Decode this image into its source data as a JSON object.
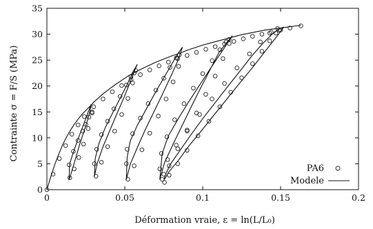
{
  "chart_data": {
    "type": "line",
    "xlabel": "Déformation vraie, ε = ln(L/L₀)",
    "ylabel": "Contrainte σ = F/S (MPa)",
    "xlim": [
      0,
      0.2
    ],
    "ylim": [
      0,
      35
    ],
    "x_ticks": [
      0,
      0.05,
      0.1,
      0.15,
      0.2
    ],
    "x_tick_labels": [
      "0",
      "0.05",
      "0.1",
      "0.15",
      "0.2"
    ],
    "y_ticks": [
      0,
      5,
      10,
      15,
      20,
      25,
      30,
      35
    ],
    "y_tick_labels": [
      "0",
      "5",
      "10",
      "15",
      "20",
      "25",
      "30",
      "35"
    ],
    "grid": false,
    "legend_position": "bottom-right",
    "series": [
      {
        "name": "PA6",
        "style": "markers",
        "marker": "open-circle",
        "x": [
          0.0,
          0.004,
          0.008,
          0.012,
          0.016,
          0.02,
          0.024,
          0.03,
          0.036,
          0.042,
          0.048,
          0.054,
          0.06,
          0.066,
          0.072,
          0.078,
          0.084,
          0.09,
          0.096,
          0.102,
          0.108,
          0.114,
          0.12,
          0.126,
          0.132,
          0.138,
          0.144,
          0.15,
          0.156,
          0.163,
          0.029,
          0.027,
          0.025,
          0.023,
          0.02,
          0.017,
          0.0143,
          0.0147,
          0.0175,
          0.0205,
          0.0235,
          0.0265,
          0.029,
          0.056,
          0.054,
          0.051,
          0.047,
          0.043,
          0.039,
          0.035,
          0.032,
          0.0305,
          0.0315,
          0.035,
          0.039,
          0.0435,
          0.048,
          0.052,
          0.055,
          0.057,
          0.085,
          0.083,
          0.079,
          0.075,
          0.07,
          0.065,
          0.06,
          0.055,
          0.0515,
          0.051,
          0.052,
          0.056,
          0.061,
          0.066,
          0.0715,
          0.0765,
          0.081,
          0.0845,
          0.117,
          0.115,
          0.111,
          0.106,
          0.1,
          0.094,
          0.088,
          0.082,
          0.077,
          0.0735,
          0.0725,
          0.074,
          0.0785,
          0.084,
          0.09,
          0.096,
          0.102,
          0.108,
          0.113,
          0.117,
          0.149,
          0.147,
          0.143,
          0.138,
          0.132,
          0.125,
          0.118,
          0.111,
          0.104,
          0.097,
          0.09,
          0.084,
          0.0785,
          0.0755,
          0.075,
          0.0775,
          0.083,
          0.09,
          0.098,
          0.106,
          0.114,
          0.122,
          0.13,
          0.137,
          0.143,
          0.148
        ],
        "y": [
          0.0,
          3.0,
          6.0,
          8.5,
          10.7,
          12.5,
          14.1,
          16.0,
          17.5,
          18.9,
          20.1,
          21.2,
          22.2,
          23.1,
          23.9,
          24.6,
          25.3,
          25.9,
          26.5,
          27.1,
          27.6,
          28.1,
          28.6,
          29.1,
          29.6,
          30.0,
          30.4,
          30.8,
          31.2,
          31.6,
          15.0,
          14.0,
          12.6,
          11.3,
          9.5,
          7.4,
          4.8,
          2.3,
          4.0,
          6.2,
          8.8,
          11.8,
          14.8,
          22.5,
          21.8,
          20.2,
          18.0,
          15.6,
          13.2,
          10.6,
          7.8,
          5.0,
          2.6,
          5.3,
          8.3,
          11.3,
          14.5,
          17.6,
          20.6,
          23.0,
          26.0,
          25.4,
          23.6,
          21.5,
          19.2,
          16.6,
          13.8,
          10.8,
          7.8,
          5.0,
          2.0,
          4.6,
          7.7,
          10.9,
          14.2,
          17.5,
          20.8,
          23.8,
          29.0,
          28.5,
          27.0,
          24.9,
          22.4,
          19.6,
          16.6,
          13.5,
          10.2,
          7.0,
          4.0,
          2.0,
          4.6,
          7.9,
          11.3,
          14.8,
          18.4,
          21.9,
          25.3,
          28.2,
          30.8,
          30.2,
          28.7,
          26.7,
          24.3,
          21.6,
          18.8,
          16.0,
          13.2,
          10.4,
          7.6,
          5.0,
          2.8,
          1.4,
          3.0,
          5.8,
          8.6,
          11.5,
          14.5,
          17.5,
          20.5,
          23.5,
          26.2,
          28.5,
          30.2,
          31.1
        ]
      },
      {
        "name": "Modele",
        "style": "line",
        "x": [
          0.0,
          0.0025,
          0.005,
          0.0075,
          0.01,
          0.0125,
          0.015,
          0.0175,
          0.02,
          0.0225,
          0.025,
          0.028,
          0.0305,
          0.0335,
          0.0365,
          0.04,
          0.044,
          0.048,
          0.052,
          0.056,
          0.06,
          0.065,
          0.07,
          0.075,
          0.08,
          0.085,
          0.09,
          0.095,
          0.1,
          0.105,
          0.11,
          0.115,
          0.12,
          0.125,
          0.13,
          0.135,
          0.14,
          0.145,
          0.15,
          0.155,
          0.16,
          0.163
        ],
        "y": [
          0.0,
          2.5,
          4.8,
          6.8,
          8.6,
          10.1,
          11.4,
          12.6,
          13.6,
          14.5,
          15.3,
          16.2,
          17.0,
          17.8,
          18.6,
          19.4,
          20.3,
          21.1,
          21.9,
          22.6,
          23.2,
          23.9,
          24.6,
          25.2,
          25.8,
          26.3,
          26.9,
          27.4,
          27.9,
          28.3,
          28.7,
          29.1,
          29.5,
          29.9,
          30.2,
          30.5,
          30.8,
          31.0,
          31.2,
          31.4,
          31.6,
          31.7
        ],
        "unload_reload_loops": [
          {
            "x": [
              0.0285,
              0.0265,
              0.024,
              0.021,
              0.0175,
              0.0145,
              0.0143,
              0.016,
              0.0185,
              0.021,
              0.024,
              0.027,
              0.0285
            ],
            "y": [
              16.5,
              15.0,
              12.9,
              10.6,
              7.7,
              4.9,
              1.9,
              3.6,
              6.1,
              8.7,
              11.4,
              14.3,
              16.5
            ]
          },
          {
            "x": [
              0.058,
              0.0555,
              0.052,
              0.0475,
              0.0425,
              0.0375,
              0.0335,
              0.031,
              0.0305,
              0.0325,
              0.036,
              0.0405,
              0.045,
              0.0495,
              0.0535,
              0.0565,
              0.058
            ],
            "y": [
              24.2,
              22.8,
              20.6,
              17.9,
              15.0,
              12.0,
              9.0,
              6.0,
              2.6,
              5.2,
              8.3,
              11.5,
              14.7,
              17.8,
              20.8,
              23.1,
              24.2
            ]
          },
          {
            "x": [
              0.087,
              0.0835,
              0.0795,
              0.0745,
              0.069,
              0.0635,
              0.058,
              0.0535,
              0.0515,
              0.051,
              0.0535,
              0.058,
              0.063,
              0.0685,
              0.074,
              0.079,
              0.0835,
              0.087
            ],
            "y": [
              27.5,
              26.0,
              23.9,
              21.3,
              18.4,
              15.4,
              12.4,
              9.4,
              6.2,
              2.0,
              4.9,
              8.1,
              11.5,
              14.9,
              18.3,
              21.5,
              24.5,
              27.5
            ]
          },
          {
            "x": [
              0.119,
              0.116,
              0.111,
              0.105,
              0.0985,
              0.0915,
              0.0845,
              0.078,
              0.074,
              0.0725,
              0.0755,
              0.081,
              0.087,
              0.093,
              0.099,
              0.105,
              0.1105,
              0.1155,
              0.119
            ],
            "y": [
              29.7,
              28.3,
              26.1,
              23.4,
              20.4,
              17.2,
              13.8,
              10.4,
              7.0,
              2.0,
              5.2,
              8.8,
              12.5,
              16.2,
              19.8,
              23.3,
              26.5,
              28.4,
              29.7
            ]
          },
          {
            "x": [
              0.152,
              0.149,
              0.144,
              0.138,
              0.131,
              0.123,
              0.115,
              0.107,
              0.099,
              0.091,
              0.0845,
              0.0785,
              0.0755,
              0.0755,
              0.079,
              0.0855,
              0.0925,
              0.1,
              0.108,
              0.116,
              0.124,
              0.1315,
              0.1385,
              0.1445,
              0.149,
              0.152
            ],
            "y": [
              31.4,
              30.1,
              28.2,
              25.9,
              23.2,
              20.3,
              17.3,
              14.3,
              11.3,
              8.4,
              5.7,
              3.5,
              2.0,
              2.4,
              4.8,
              7.6,
              10.6,
              13.7,
              16.8,
              19.9,
              22.9,
              25.8,
              28.2,
              30.0,
              31.0,
              31.4
            ]
          }
        ]
      }
    ]
  }
}
